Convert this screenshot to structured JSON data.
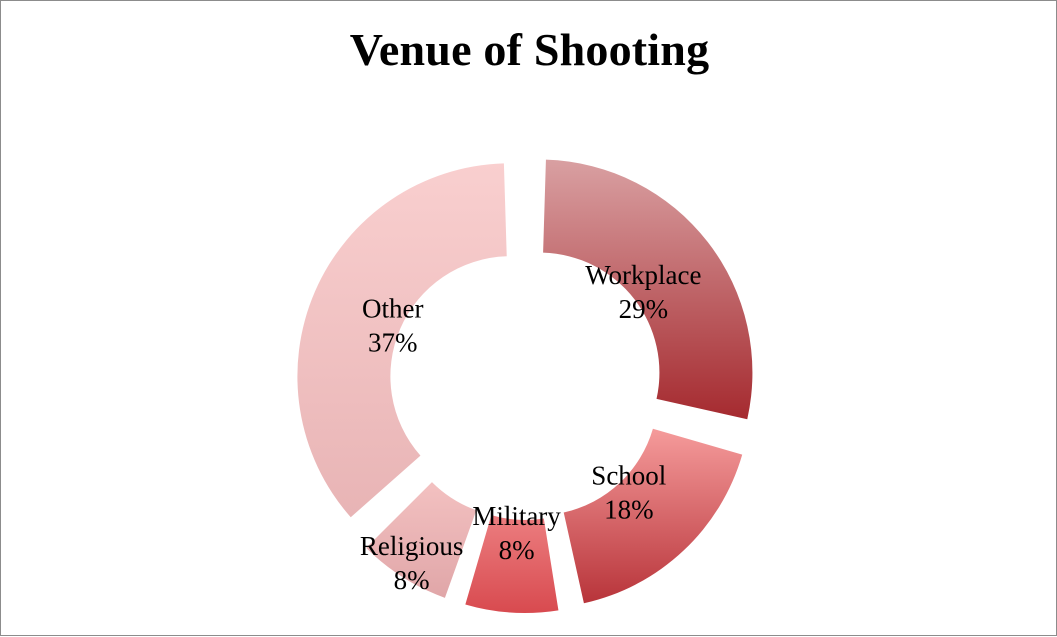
{
  "chart_data": {
    "type": "pie",
    "variant": "exploded-doughnut",
    "title": "Venue of Shooting",
    "categories": [
      "Workplace",
      "School",
      "Military",
      "Religious",
      "Other"
    ],
    "values": [
      29,
      18,
      8,
      8,
      37
    ],
    "value_labels": [
      "29%",
      "18%",
      "8%",
      "8%",
      "37%"
    ],
    "colors": [
      [
        "#d9a0a2",
        "#a52a2f"
      ],
      [
        "#f59b9b",
        "#b8343a"
      ],
      [
        "#ec7e80",
        "#d84a4f"
      ],
      [
        "#f3c1c1",
        "#e0a6a8"
      ],
      [
        "#f9cfcf",
        "#e8b4b5"
      ]
    ],
    "legend": "none"
  }
}
